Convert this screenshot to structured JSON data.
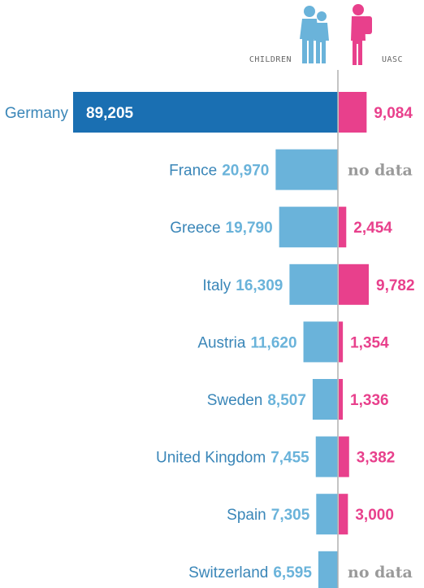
{
  "legend": {
    "children_label": "CHILDREN",
    "uasc_label": "UASC",
    "children_icon": "children-silhouette-icon",
    "uasc_icon": "child-with-backpack-icon"
  },
  "chart_data": {
    "type": "bar",
    "orientation": "horizontal-diverging",
    "categories": [
      "Germany",
      "France",
      "Greece",
      "Italy",
      "Austria",
      "Sweden",
      "United Kingdom",
      "Spain",
      "Switzerland"
    ],
    "series": [
      {
        "name": "CHILDREN",
        "values": [
          89205,
          20970,
          19790,
          16309,
          11620,
          8507,
          7455,
          7305,
          6595
        ],
        "labels": [
          "89,205",
          "20,970",
          "19,790",
          "16,309",
          "11,620",
          "8,507",
          "7,455",
          "7,305",
          "6,595"
        ],
        "color": "#6ab3da",
        "highlight_color": "#1a6fb2"
      },
      {
        "name": "UASC",
        "values": [
          9084,
          null,
          2454,
          9782,
          1354,
          1336,
          3382,
          3000,
          null
        ],
        "labels": [
          "9,084",
          "no data",
          "2,454",
          "9,782",
          "1,354",
          "1,336",
          "3,382",
          "3,000",
          "no data"
        ],
        "color": "#e8408c"
      }
    ],
    "grid": false,
    "colors": {
      "children": "#6ab3da",
      "children_highlight": "#1a6fb2",
      "uasc": "#e8408c",
      "no_data": "#9a9a9a",
      "axis": "#b0b0b0",
      "country_text": "#3a86b8"
    }
  }
}
